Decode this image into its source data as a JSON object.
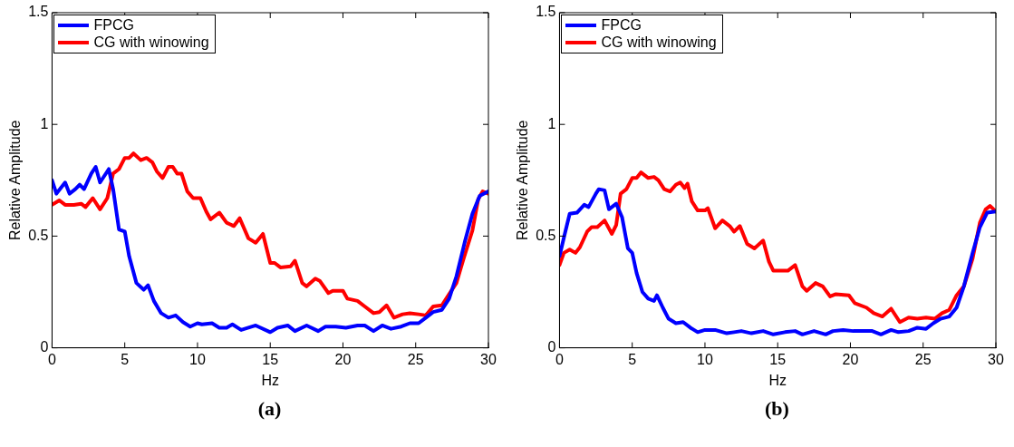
{
  "chart_data": [
    {
      "type": "line",
      "xlabel": "Hz",
      "ylabel": "Relative Amplitude",
      "xlim": [
        0,
        30
      ],
      "ylim": [
        0,
        1.5
      ],
      "xticks": [
        0,
        5,
        10,
        15,
        20,
        25,
        30
      ],
      "yticks": [
        0,
        0.5,
        1,
        1.5
      ],
      "grid": false,
      "legend": "top left",
      "marker": "none",
      "line_style": "solid",
      "annotations": [
        "(a)"
      ],
      "series": [
        {
          "name": "FPCG",
          "color": "#0000ff",
          "x": [
            0,
            0.3,
            0.9,
            1.2,
            1.6,
            1.9,
            2.2,
            2.7,
            3,
            3.3,
            3.9,
            4.2,
            4.6,
            5,
            5.3,
            5.8,
            6.3,
            6.6,
            7,
            7.5,
            8,
            8.5,
            9,
            9.5,
            10,
            10.3,
            11,
            11.5,
            12,
            12.4,
            13,
            13.5,
            14,
            15,
            15.5,
            16.2,
            16.7,
            17.5,
            18.3,
            18.8,
            19.5,
            20.2,
            21,
            21.5,
            22.1,
            22.7,
            23.3,
            24,
            24.6,
            25.2,
            25.7,
            26.2,
            26.8,
            27.3,
            27.8,
            28.4,
            28.9,
            29.4,
            30
          ],
          "values": [
            0.75,
            0.69,
            0.74,
            0.69,
            0.71,
            0.73,
            0.71,
            0.78,
            0.81,
            0.74,
            0.8,
            0.71,
            0.53,
            0.52,
            0.41,
            0.29,
            0.26,
            0.28,
            0.21,
            0.155,
            0.135,
            0.145,
            0.115,
            0.095,
            0.11,
            0.105,
            0.11,
            0.09,
            0.09,
            0.105,
            0.08,
            0.09,
            0.1,
            0.07,
            0.09,
            0.1,
            0.075,
            0.1,
            0.075,
            0.095,
            0.095,
            0.09,
            0.1,
            0.1,
            0.075,
            0.1,
            0.085,
            0.095,
            0.11,
            0.11,
            0.135,
            0.16,
            0.17,
            0.22,
            0.32,
            0.48,
            0.6,
            0.68,
            0.7
          ]
        },
        {
          "name": "CG with winowing",
          "color": "#ff0000",
          "x": [
            0,
            0.5,
            0.9,
            1.5,
            2,
            2.3,
            2.8,
            3.3,
            3.8,
            4.2,
            4.6,
            5,
            5.3,
            5.6,
            6.1,
            6.5,
            6.9,
            7.2,
            7.6,
            8,
            8.3,
            8.6,
            8.9,
            9.3,
            9.7,
            10.2,
            10.6,
            10.9,
            11.5,
            12,
            12.5,
            12.9,
            13.5,
            14,
            14.5,
            15,
            15.3,
            15.7,
            16.4,
            16.7,
            17.2,
            17.5,
            18.1,
            18.4,
            19,
            19.3,
            20,
            20.3,
            21,
            21.5,
            22.1,
            22.5,
            23,
            23.5,
            24.1,
            24.6,
            25.2,
            25.7,
            26.2,
            26.8,
            27.3,
            27.8,
            28.3,
            28.9,
            29.3,
            29.6,
            30
          ],
          "values": [
            0.64,
            0.66,
            0.64,
            0.64,
            0.645,
            0.63,
            0.67,
            0.62,
            0.67,
            0.78,
            0.8,
            0.85,
            0.85,
            0.87,
            0.84,
            0.85,
            0.83,
            0.79,
            0.76,
            0.81,
            0.81,
            0.78,
            0.78,
            0.7,
            0.67,
            0.67,
            0.61,
            0.575,
            0.605,
            0.56,
            0.545,
            0.58,
            0.49,
            0.47,
            0.51,
            0.38,
            0.38,
            0.36,
            0.365,
            0.39,
            0.29,
            0.275,
            0.31,
            0.3,
            0.245,
            0.255,
            0.255,
            0.22,
            0.21,
            0.185,
            0.155,
            0.16,
            0.19,
            0.135,
            0.15,
            0.155,
            0.15,
            0.145,
            0.185,
            0.19,
            0.24,
            0.29,
            0.4,
            0.525,
            0.665,
            0.7,
            0.69
          ]
        }
      ]
    },
    {
      "type": "line",
      "xlabel": "Hz",
      "ylabel": "Relative Amplitude",
      "xlim": [
        0,
        30
      ],
      "ylim": [
        0,
        1.5
      ],
      "xticks": [
        0,
        5,
        10,
        15,
        20,
        25,
        30
      ],
      "yticks": [
        0,
        0.5,
        1,
        1.5
      ],
      "grid": false,
      "legend": "top left",
      "marker": "none",
      "line_style": "solid",
      "annotations": [
        "(b)"
      ],
      "series": [
        {
          "name": "FPCG",
          "color": "#0000ff",
          "x": [
            0,
            0.4,
            0.7,
            1.2,
            1.7,
            2,
            2.5,
            2.7,
            3.1,
            3.4,
            3.9,
            4.3,
            4.7,
            5,
            5.3,
            5.7,
            6.1,
            6.5,
            6.7,
            7.1,
            7.5,
            8,
            8.5,
            9,
            9.5,
            10,
            10.7,
            11.5,
            12,
            12.5,
            13.2,
            14,
            14.7,
            15.5,
            16.2,
            16.7,
            17.5,
            18.3,
            18.8,
            19.5,
            20.2,
            21,
            21.5,
            22.1,
            22.8,
            23.3,
            24,
            24.6,
            25.2,
            25.7,
            26.2,
            26.8,
            27.3,
            27.8,
            28.4,
            28.9,
            29.4,
            30
          ],
          "values": [
            0.41,
            0.52,
            0.6,
            0.605,
            0.64,
            0.63,
            0.69,
            0.71,
            0.705,
            0.62,
            0.645,
            0.585,
            0.445,
            0.425,
            0.335,
            0.25,
            0.22,
            0.21,
            0.235,
            0.18,
            0.13,
            0.11,
            0.115,
            0.09,
            0.07,
            0.08,
            0.08,
            0.065,
            0.07,
            0.075,
            0.065,
            0.075,
            0.06,
            0.07,
            0.075,
            0.06,
            0.075,
            0.06,
            0.075,
            0.08,
            0.075,
            0.075,
            0.075,
            0.06,
            0.08,
            0.07,
            0.075,
            0.09,
            0.085,
            0.11,
            0.13,
            0.14,
            0.18,
            0.275,
            0.425,
            0.54,
            0.605,
            0.61
          ]
        },
        {
          "name": "CG with winowing",
          "color": "#ff0000",
          "x": [
            0,
            0.3,
            0.7,
            1.1,
            1.4,
            1.9,
            2.2,
            2.6,
            3.1,
            3.6,
            3.9,
            4.2,
            4.6,
            5,
            5.3,
            5.6,
            6.1,
            6.5,
            6.8,
            7.2,
            7.6,
            8,
            8.3,
            8.6,
            8.8,
            9.1,
            9.5,
            10,
            10.2,
            10.7,
            11.2,
            11.7,
            12,
            12.4,
            12.9,
            13.4,
            14,
            14.4,
            14.7,
            15.7,
            16.2,
            16.7,
            17,
            17.6,
            18.1,
            18.6,
            19,
            19.9,
            20.3,
            21.1,
            21.6,
            22.2,
            22.8,
            23.4,
            24,
            24.6,
            25.2,
            25.8,
            26.3,
            26.8,
            27.3,
            27.8,
            28.4,
            28.9,
            29.3,
            29.6,
            30
          ],
          "values": [
            0.37,
            0.425,
            0.44,
            0.425,
            0.45,
            0.52,
            0.54,
            0.54,
            0.57,
            0.51,
            0.55,
            0.69,
            0.71,
            0.76,
            0.76,
            0.785,
            0.76,
            0.765,
            0.75,
            0.71,
            0.7,
            0.73,
            0.74,
            0.715,
            0.735,
            0.655,
            0.615,
            0.615,
            0.625,
            0.535,
            0.57,
            0.545,
            0.52,
            0.545,
            0.465,
            0.445,
            0.48,
            0.385,
            0.345,
            0.345,
            0.37,
            0.275,
            0.255,
            0.29,
            0.275,
            0.23,
            0.24,
            0.235,
            0.2,
            0.18,
            0.155,
            0.14,
            0.175,
            0.115,
            0.135,
            0.13,
            0.135,
            0.13,
            0.155,
            0.17,
            0.235,
            0.275,
            0.4,
            0.56,
            0.62,
            0.635,
            0.61
          ]
        }
      ]
    }
  ]
}
